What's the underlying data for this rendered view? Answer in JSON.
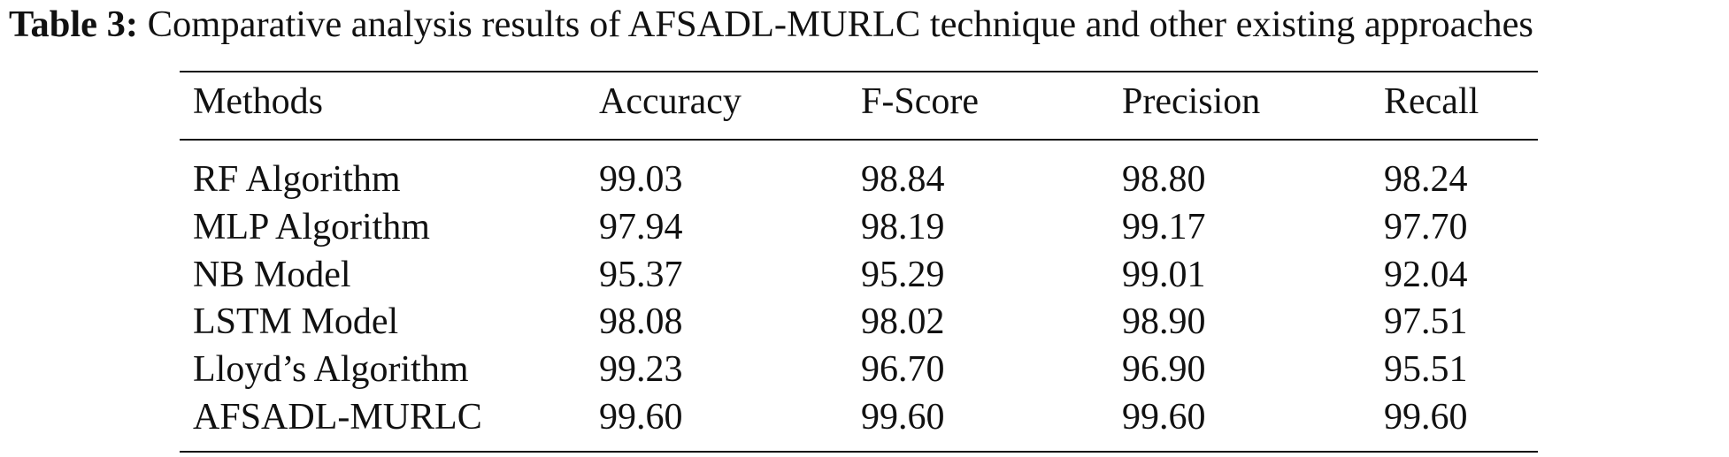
{
  "caption": {
    "label": "Table 3:",
    "text": "Comparative analysis results of AFSADL-MURLC technique and other existing approaches"
  },
  "table": {
    "header": [
      "Methods",
      "Accuracy",
      "F-Score",
      "Precision",
      "Recall"
    ],
    "rows": [
      [
        "RF Algorithm",
        "99.03",
        "98.84",
        "98.80",
        "98.24"
      ],
      [
        "MLP Algorithm",
        "97.94",
        "98.19",
        "99.17",
        "97.70"
      ],
      [
        "NB Model",
        "95.37",
        "95.29",
        "99.01",
        "92.04"
      ],
      [
        "LSTM Model",
        "98.08",
        "98.02",
        "98.90",
        "97.51"
      ],
      [
        "Lloyd’s Algorithm",
        "99.23",
        "96.70",
        "96.90",
        "95.51"
      ],
      [
        "AFSADL-MURLC",
        "99.60",
        "99.60",
        "99.60",
        "99.60"
      ]
    ]
  }
}
